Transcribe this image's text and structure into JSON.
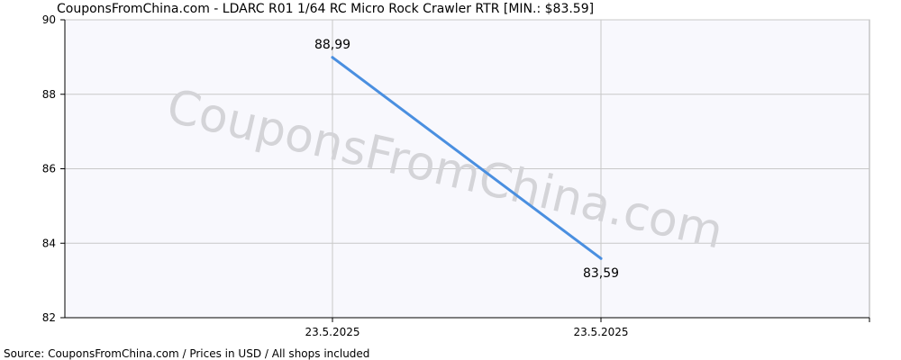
{
  "chart_data": {
    "type": "line",
    "title": "CouponsFromChina.com - LDARC R01 1/64 RC Micro Rock Crawler RTR [MIN.: $83.59]",
    "xlabel": "",
    "ylabel": "",
    "categories": [
      "23.5.2025",
      "23.5.2025"
    ],
    "series": [
      {
        "values": [
          88.99,
          83.59
        ],
        "data_labels": [
          "88,99",
          "83,59"
        ]
      }
    ],
    "ylim": [
      82,
      90
    ],
    "y_ticks": [
      82,
      84,
      86,
      88,
      90
    ],
    "grid": true,
    "legend": "none",
    "watermark": "CouponsFromChina.com",
    "source": "Source: CouponsFromChina.com / Prices in USD / All shops included",
    "colors": {
      "line": "#4a8fe0",
      "plot_background": "#f8f8fd",
      "grid": "#c8c8c8",
      "axis": "#000000",
      "watermark": "#d4d4d8"
    }
  }
}
